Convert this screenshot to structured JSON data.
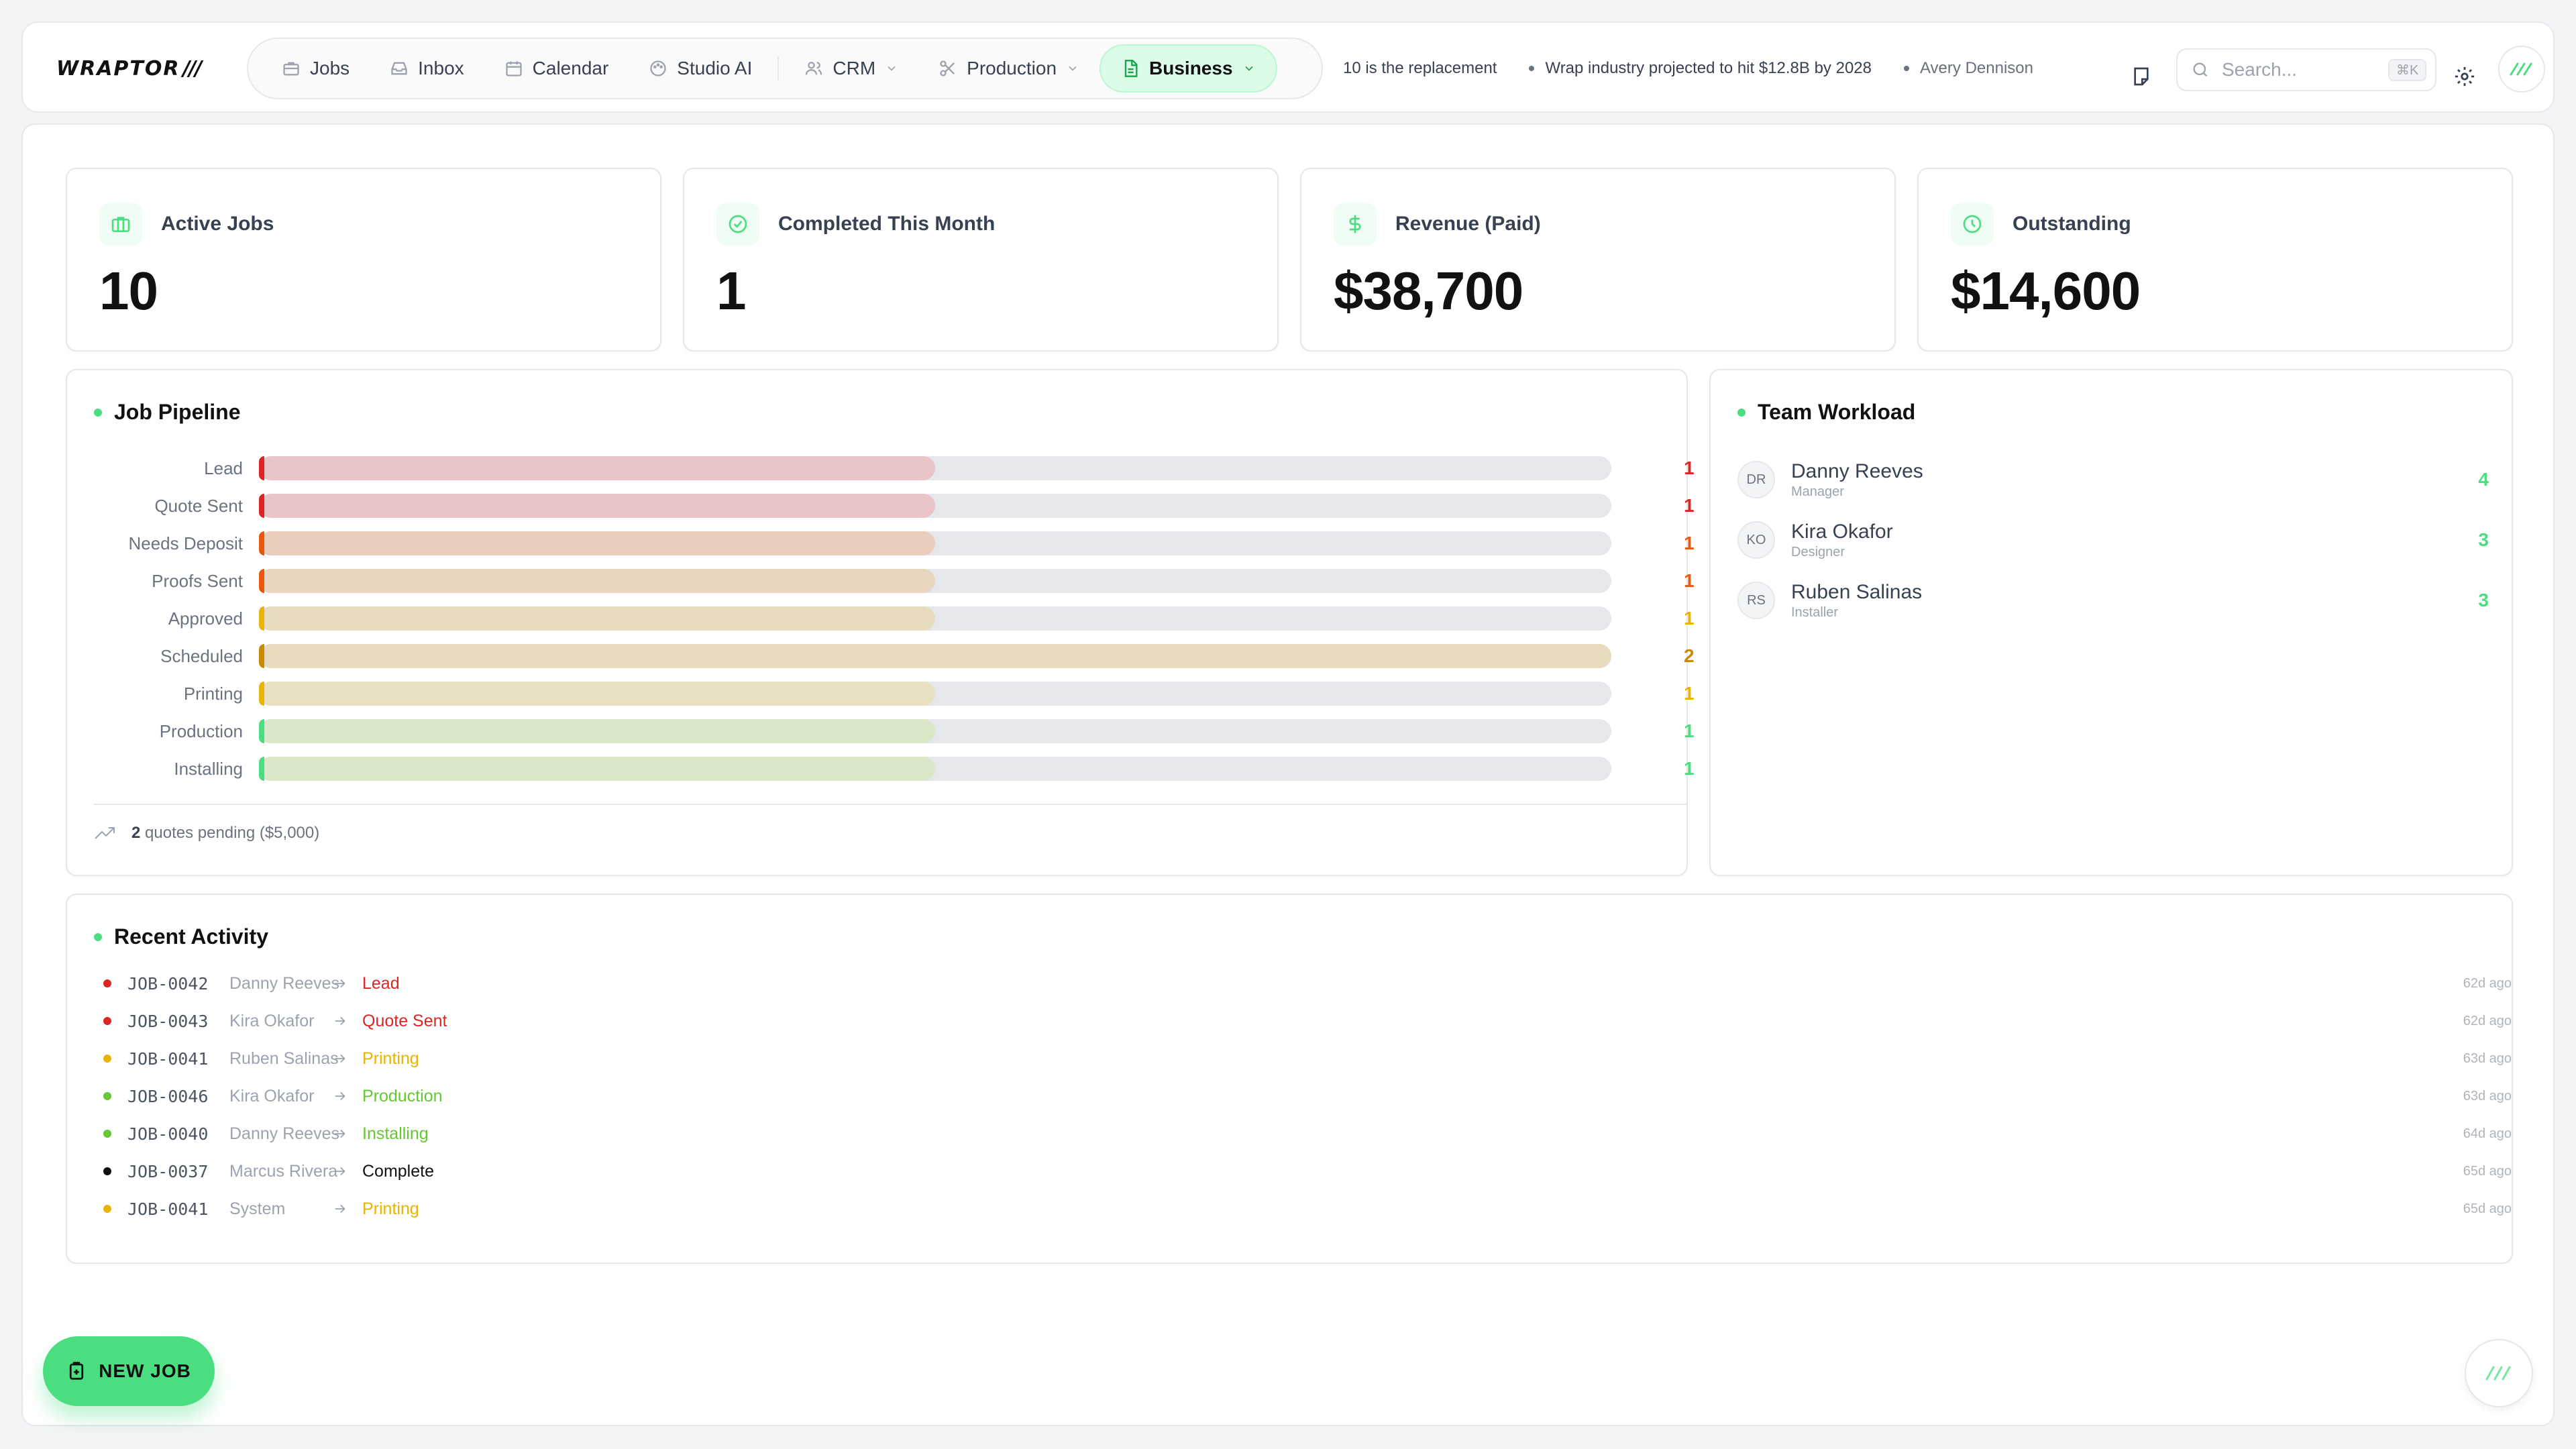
{
  "brand": {
    "logo_text": "WRAPTOR",
    "logo_mark": "///"
  },
  "nav": {
    "items": [
      {
        "label": "Jobs",
        "icon": "briefcase-icon"
      },
      {
        "label": "Inbox",
        "icon": "inbox-icon"
      },
      {
        "label": "Calendar",
        "icon": "calendar-icon"
      },
      {
        "label": "Studio AI",
        "icon": "palette-icon"
      },
      {
        "label": "CRM",
        "icon": "users-icon"
      },
      {
        "label": "Production",
        "icon": "scissors-icon"
      },
      {
        "label": "Business",
        "icon": "file-icon"
      }
    ],
    "active": "Business"
  },
  "ticker": [
    "10 is the replacement",
    "Wrap industry projected to hit $12.8B by 2028",
    "Avery Dennison"
  ],
  "search": {
    "placeholder": "Search...",
    "shortcut": "⌘K"
  },
  "stats": [
    {
      "label": "Active Jobs",
      "value": "10",
      "icon": "briefcase-icon"
    },
    {
      "label": "Completed This Month",
      "value": "1",
      "icon": "check-circle-icon"
    },
    {
      "label": "Revenue (Paid)",
      "value": "$38,700",
      "icon": "dollar-icon"
    },
    {
      "label": "Outstanding",
      "value": "$14,600",
      "icon": "clock-icon"
    }
  ],
  "pipeline": {
    "title": "Job Pipeline",
    "max": 2,
    "stages": [
      {
        "label": "Lead",
        "count": 1,
        "color": "#dc2626",
        "fill": "#e8c4c8"
      },
      {
        "label": "Quote Sent",
        "count": 1,
        "color": "#dc2626",
        "fill": "#e8c4c8"
      },
      {
        "label": "Needs Deposit",
        "count": 1,
        "color": "#ea580c",
        "fill": "#e9cdbd"
      },
      {
        "label": "Proofs Sent",
        "count": 1,
        "color": "#ea580c",
        "fill": "#e8d6c0"
      },
      {
        "label": "Approved",
        "count": 1,
        "color": "#eab308",
        "fill": "#e8dcc0"
      },
      {
        "label": "Scheduled",
        "count": 2,
        "color": "#ca8a04",
        "fill": "#e8dcc0"
      },
      {
        "label": "Printing",
        "count": 1,
        "color": "#eab308",
        "fill": "#e8e0c0"
      },
      {
        "label": "Production",
        "count": 1,
        "color": "#4ade80",
        "fill": "#d9e6c8"
      },
      {
        "label": "Installing",
        "count": 1,
        "color": "#4ade80",
        "fill": "#d9e6c8"
      }
    ],
    "footer_count": "2",
    "footer_text": "quotes pending ($5,000)"
  },
  "team": {
    "title": "Team Workload",
    "members": [
      {
        "initials": "DR",
        "name": "Danny Reeves",
        "role": "Manager",
        "count": "4"
      },
      {
        "initials": "KO",
        "name": "Kira Okafor",
        "role": "Designer",
        "count": "3"
      },
      {
        "initials": "RS",
        "name": "Ruben Salinas",
        "role": "Installer",
        "count": "3"
      }
    ]
  },
  "activity": {
    "title": "Recent Activity",
    "rows": [
      {
        "job": "JOB-0042",
        "who": "Danny Reeves",
        "stage": "Lead",
        "color": "#dc2626",
        "time": "62d ago"
      },
      {
        "job": "JOB-0043",
        "who": "Kira Okafor",
        "stage": "Quote Sent",
        "color": "#dc2626",
        "time": "62d ago"
      },
      {
        "job": "JOB-0041",
        "who": "Ruben Salinas",
        "stage": "Printing",
        "color": "#eab308",
        "time": "63d ago"
      },
      {
        "job": "JOB-0046",
        "who": "Kira Okafor",
        "stage": "Production",
        "color": "#65c732",
        "time": "63d ago"
      },
      {
        "job": "JOB-0040",
        "who": "Danny Reeves",
        "stage": "Installing",
        "color": "#65c732",
        "time": "64d ago"
      },
      {
        "job": "JOB-0037",
        "who": "Marcus Rivera",
        "stage": "Complete",
        "color": "#111111",
        "time": "65d ago"
      },
      {
        "job": "JOB-0041",
        "who": "System",
        "stage": "Printing",
        "color": "#eab308",
        "time": "65d ago"
      }
    ]
  },
  "new_job_label": "NEW JOB"
}
